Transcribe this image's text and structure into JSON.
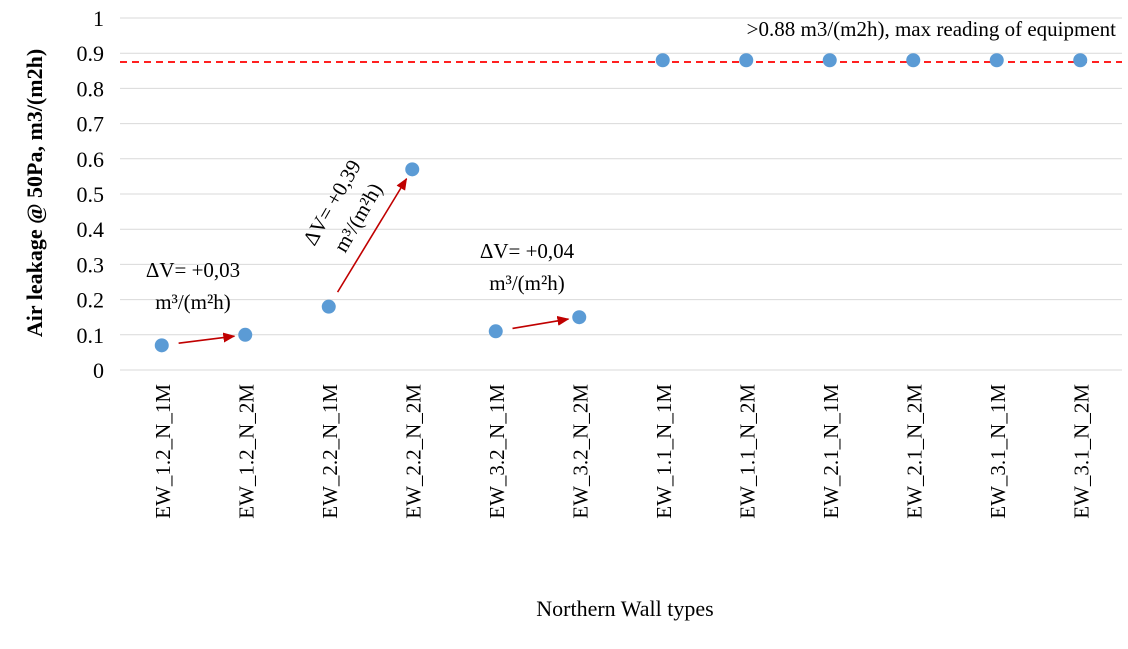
{
  "chart_data": {
    "type": "scatter",
    "categories": [
      "EW_1.2_N_1M",
      "EW_1.2_N_2M",
      "EW_2.2_N_1M",
      "EW_2.2_N_2M",
      "EW_3.2_N_1M",
      "EW_3.2_N_2M",
      "EW_1.1_N_1M",
      "EW_1.1_N_2M",
      "EW_2.1_N_1M",
      "EW_2.1_N_2M",
      "EW_3.1_N_1M",
      "EW_3.1_N_2M"
    ],
    "values": [
      0.07,
      0.1,
      0.18,
      0.57,
      0.11,
      0.15,
      0.88,
      0.88,
      0.88,
      0.88,
      0.88,
      0.88
    ],
    "title": "",
    "xlabel": "Northern Wall types",
    "ylabel": "Air leakage @ 50Pa, m3/(m2h)",
    "ylim": [
      0,
      1
    ],
    "yticks": [
      "0",
      "0.1",
      "0.2",
      "0.3",
      "0.4",
      "0.5",
      "0.6",
      "0.7",
      "0.8",
      "0.9",
      "1"
    ],
    "grid": true,
    "marker_color": "#5b9bd5",
    "threshold": {
      "value": 0.875,
      "color": "#ff0000",
      "style": "dashed",
      "label": ">0.88 m3/(m2h), max reading of equipment"
    },
    "arrows": [
      {
        "from_index": 0,
        "to_index": 1,
        "color": "#c00000",
        "label_line1": "ΔV= +0,03",
        "label_line2": "m³/(m²h)"
      },
      {
        "from_index": 2,
        "to_index": 3,
        "color": "#c00000",
        "label_line1": "ΔV= +0,39",
        "label_line2": "m³/(m²h)"
      },
      {
        "from_index": 4,
        "to_index": 5,
        "color": "#c00000",
        "label_line1": "ΔV= +0,04",
        "label_line2": "m³/(m²h)"
      }
    ]
  }
}
